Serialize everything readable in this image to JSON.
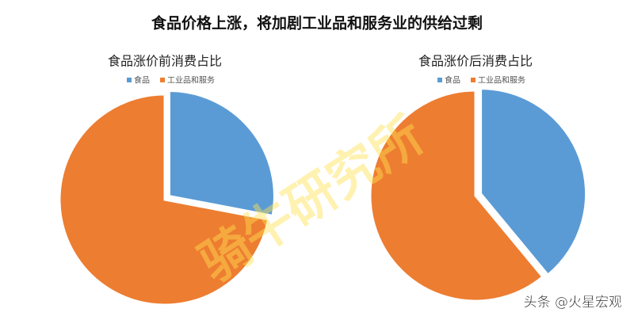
{
  "title": "食品价格上涨，将加剧工业品和服务业的供给过剩",
  "chart_data": [
    {
      "type": "pie",
      "title": "食品涨价前消费占比",
      "categories": [
        "食品",
        "工业品和服务"
      ],
      "values": [
        28,
        72
      ],
      "colors": [
        "#5b9bd5",
        "#ed7d31"
      ],
      "exploded": 0
    },
    {
      "type": "pie",
      "title": "食品涨价后消费占比",
      "categories": [
        "食品",
        "工业品和服务"
      ],
      "values": [
        39,
        61
      ],
      "colors": [
        "#5b9bd5",
        "#ed7d31"
      ],
      "exploded": 0
    }
  ],
  "watermarks": [
    "骑牛研究所",
    "头条 @火星宏观"
  ]
}
